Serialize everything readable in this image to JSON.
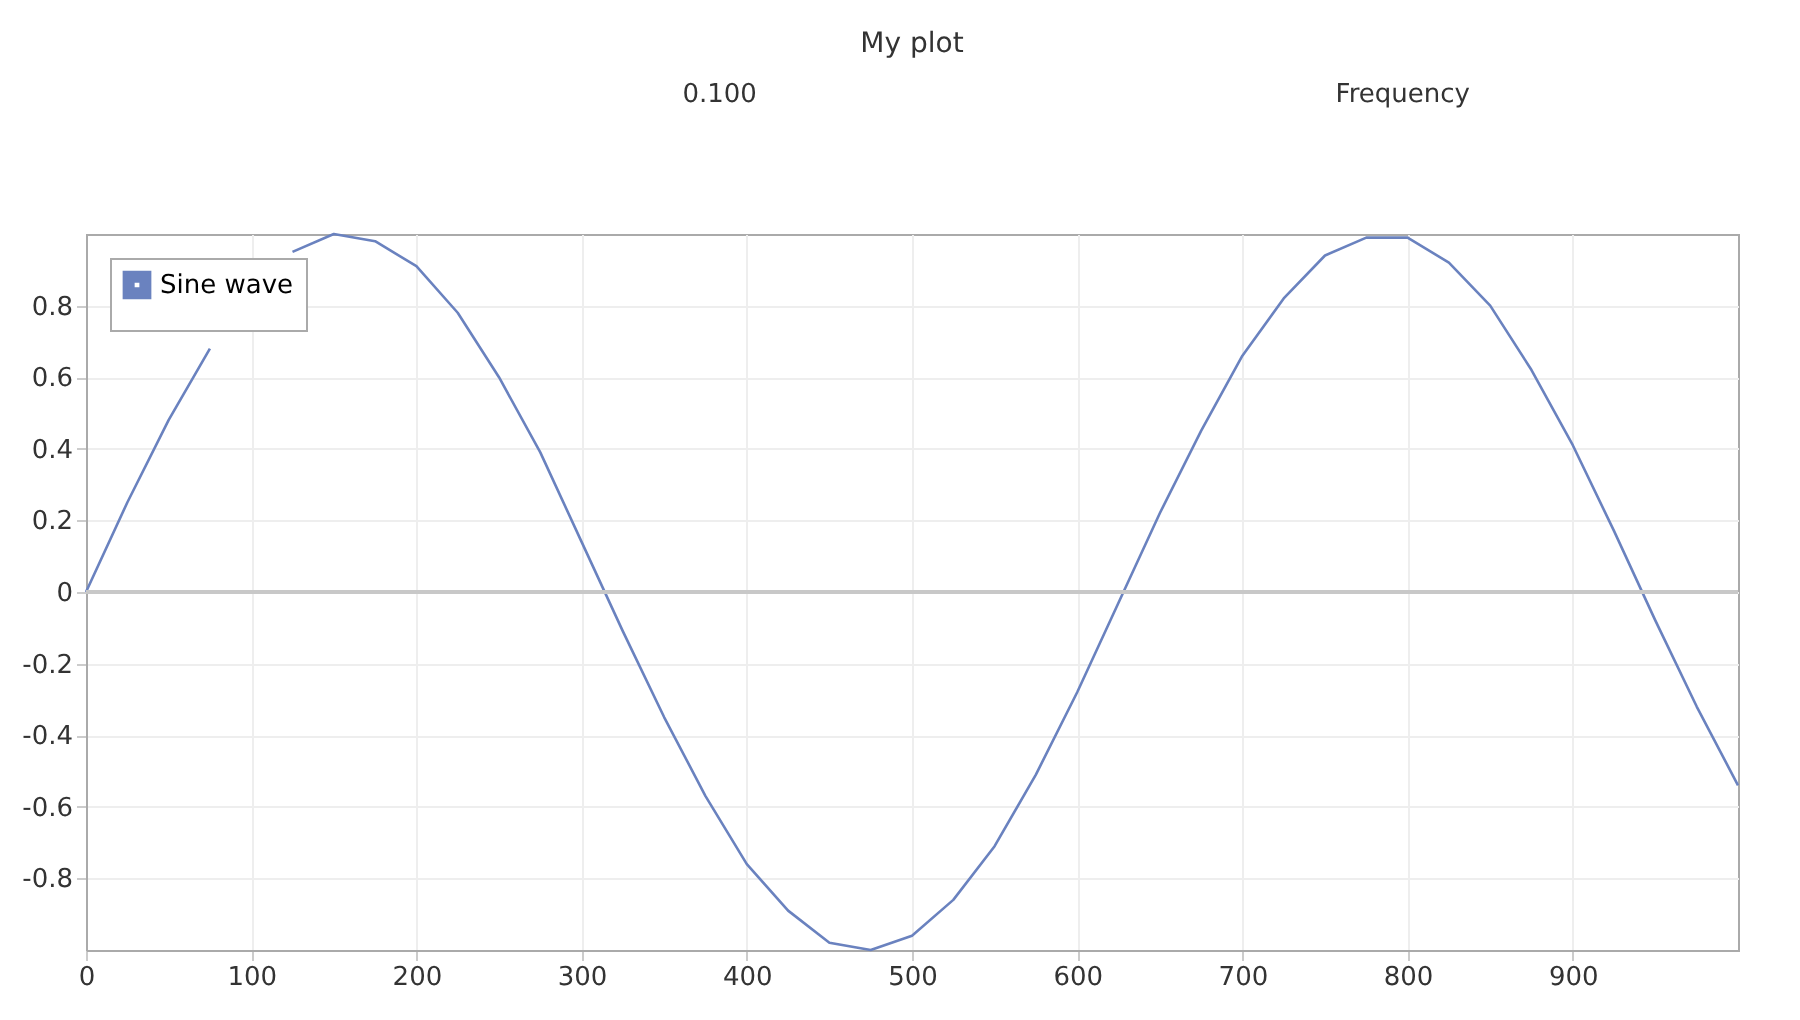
{
  "chart_data": {
    "type": "line",
    "title": "My plot",
    "annotations": [
      "0.100",
      "Frequency"
    ],
    "x": [
      0,
      25,
      50,
      75,
      100,
      125,
      150,
      175,
      200,
      225,
      250,
      275,
      300,
      325,
      350,
      375,
      400,
      425,
      450,
      475,
      500,
      525,
      550,
      575,
      600,
      625,
      650,
      675,
      700,
      725,
      750,
      775,
      800,
      825,
      850,
      875,
      900,
      925,
      950,
      975,
      1000
    ],
    "series": [
      {
        "name": "Sine wave",
        "color": "#6a82bf",
        "values": [
          0,
          0.25,
          0.48,
          0.68,
          null,
          0.95,
          1.0,
          0.98,
          0.91,
          0.78,
          0.6,
          0.39,
          0.14,
          -0.11,
          -0.35,
          -0.57,
          -0.76,
          -0.89,
          -0.98,
          -1.0,
          -0.96,
          -0.86,
          -0.71,
          -0.51,
          -0.28,
          -0.03,
          0.22,
          0.45,
          0.66,
          0.82,
          0.94,
          0.99,
          0.99,
          0.92,
          0.8,
          0.62,
          0.41,
          0.17,
          -0.08,
          -0.32,
          -0.54
        ]
      }
    ],
    "xlim": [
      0,
      1000
    ],
    "xticks": [
      0,
      100,
      200,
      300,
      400,
      500,
      600,
      700,
      800,
      900
    ],
    "ylim": [
      -1,
      1
    ],
    "yticks": [
      -0.8,
      -0.6,
      -0.4,
      -0.2,
      0,
      0.2,
      0.4,
      0.6,
      0.8
    ],
    "ref_lines": [
      {
        "axis": "y",
        "value": 0,
        "label": null,
        "color": "#c8c8c8"
      }
    ],
    "grid": true,
    "legend": "top left",
    "marker": "none",
    "line_style": "solid"
  }
}
